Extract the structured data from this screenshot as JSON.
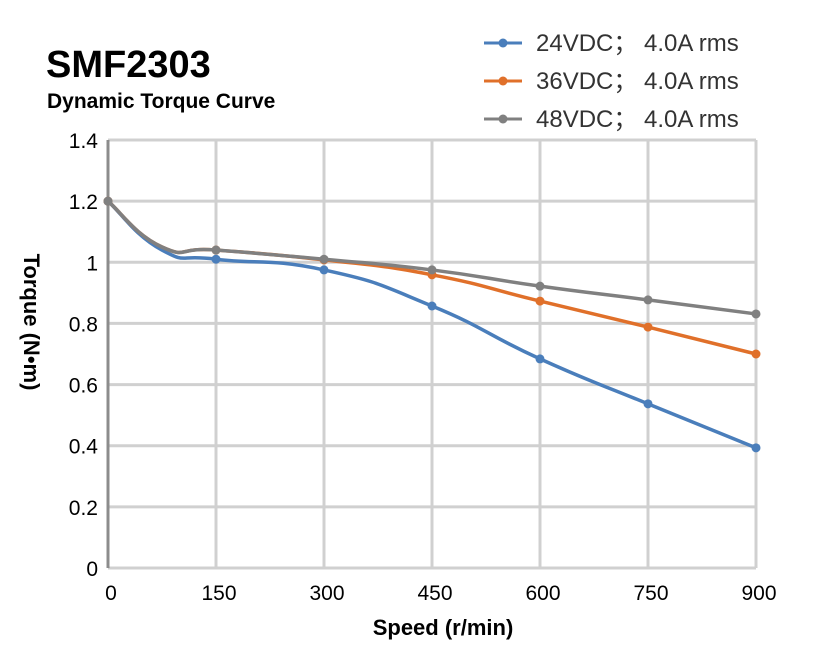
{
  "chart_data": {
    "type": "line",
    "title": "SMF2303",
    "subtitle": "Dynamic Torque Curve",
    "xlabel": "Speed (r/min)",
    "ylabel": "Torque (N•m)",
    "xlim": [
      0,
      900
    ],
    "ylim": [
      0,
      1.4
    ],
    "xticks": [
      "0",
      "150",
      "300",
      "450",
      "600",
      "750",
      "900"
    ],
    "yticks": [
      "0",
      "0.2",
      "0.4",
      "0.6",
      "0.8",
      "1",
      "1.2",
      "1.4"
    ],
    "grid": true,
    "legend_position": "top-right",
    "x": [
      0,
      75,
      150,
      300,
      450,
      600,
      750,
      900
    ],
    "series": [
      {
        "name": "24VDC； 4.0A rms",
        "color": "#4a7ebb",
        "values": [
          1.2,
          1.04,
          1.01,
          0.975,
          0.857,
          0.684,
          0.537,
          0.393
        ]
      },
      {
        "name": "36VDC； 4.0A rms",
        "color": "#e0702a",
        "values": [
          1.2,
          1.05,
          1.04,
          1.008,
          0.959,
          0.873,
          0.788,
          0.7
        ]
      },
      {
        "name": "48VDC； 4.0A rms",
        "color": "#808080",
        "values": [
          1.2,
          1.05,
          1.04,
          1.01,
          0.975,
          0.922,
          0.877,
          0.831
        ]
      }
    ]
  }
}
